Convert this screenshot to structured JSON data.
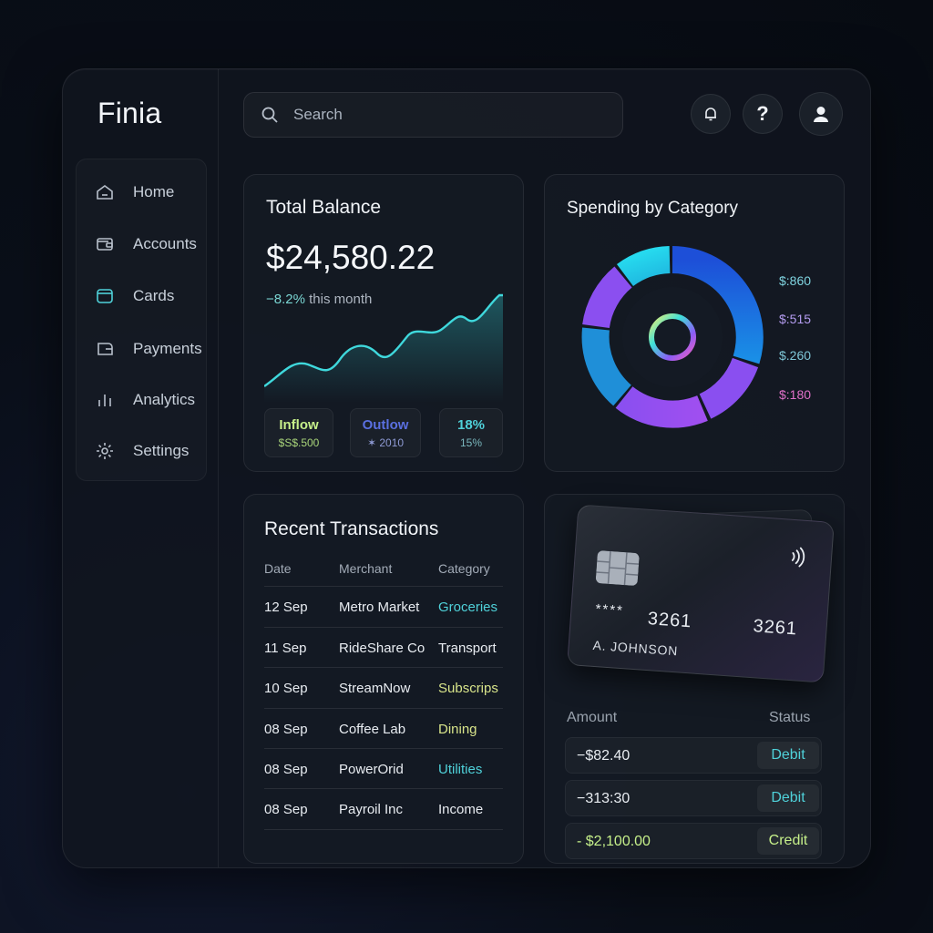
{
  "app": {
    "name": "Finia"
  },
  "sidebar": {
    "items": [
      {
        "label": "Home",
        "icon": "home-icon"
      },
      {
        "label": "Accounts",
        "icon": "wallet-icon"
      },
      {
        "label": "Cards",
        "icon": "card-icon",
        "active": true
      },
      {
        "label": "Payments",
        "icon": "payments-icon"
      },
      {
        "label": "Analytics",
        "icon": "analytics-icon"
      },
      {
        "label": "Settings",
        "icon": "gear-icon"
      }
    ]
  },
  "search": {
    "placeholder": "Search"
  },
  "header": {
    "icons": [
      "bell-icon",
      "help-icon",
      "user-icon"
    ],
    "help_glyph": "?"
  },
  "balance": {
    "title": "Total Balance",
    "amount": "$24,580.22",
    "change_prefix": "−",
    "change_pct": "8.2%",
    "change_text": "this month",
    "stats": [
      {
        "label": "Inflow",
        "value": "$S$.500",
        "label_color": "#c6f08a",
        "value_color": "#a8d47a"
      },
      {
        "label": "Outlow",
        "value": "✶ 2010",
        "label_color": "#5a6fe0",
        "value_color": "#8e9ad4"
      },
      {
        "label": "18%",
        "value": "15%",
        "label_color": "#4fd1d9",
        "value_color": "#7ab7bd"
      }
    ]
  },
  "spending": {
    "title": "Spending by Category",
    "legend": [
      {
        "value": "$:860",
        "color": "#7fd4e0"
      },
      {
        "value": "$:515",
        "color": "#b49cf0"
      },
      {
        "value": "$.260",
        "color": "#7fc7d8"
      },
      {
        "value": "$:180",
        "color": "#e070c8"
      }
    ]
  },
  "transactions": {
    "title": "Recent Transactions",
    "columns": [
      "Date",
      "Merchant",
      "Category"
    ],
    "rows": [
      {
        "date": "12 Sep",
        "merchant": "Metro Market",
        "category": "Groceries",
        "color": "#4fd1d9"
      },
      {
        "date": "11 Sep",
        "merchant": "RideShare Co",
        "category": "Transport",
        "color": "#e8ecf1"
      },
      {
        "date": "10 Sep",
        "merchant": "StreamNow",
        "category": "Subscrips",
        "color": "#d8e48a"
      },
      {
        "date": "08 Sep",
        "merchant": "Coffee Lab",
        "category": "Dining",
        "color": "#d8e48a"
      },
      {
        "date": "08 Sep",
        "merchant": "PowerOrid",
        "category": "Utilities",
        "color": "#4fd1d9"
      },
      {
        "date": "08 Sep",
        "merchant": "Payroil Inc",
        "category": "Income",
        "color": "#e8ecf1"
      }
    ]
  },
  "card": {
    "masked": "****",
    "last4": "3261",
    "number_right": "3261",
    "holder": "A. JOHNSON"
  },
  "payments": {
    "columns": [
      "Amount",
      "Status"
    ],
    "rows": [
      {
        "amount": "−$82.40",
        "status": "Debit",
        "status_color": "#4fd1d9",
        "amount_color": "#e8ecf1"
      },
      {
        "amount": "−313:30",
        "status": "Debit",
        "status_color": "#4fd1d9",
        "amount_color": "#e8ecf1"
      },
      {
        "amount": "- $2,100.00",
        "status": "Credit",
        "status_color": "#c6f08a",
        "amount_color": "#c6f08a"
      }
    ]
  }
}
